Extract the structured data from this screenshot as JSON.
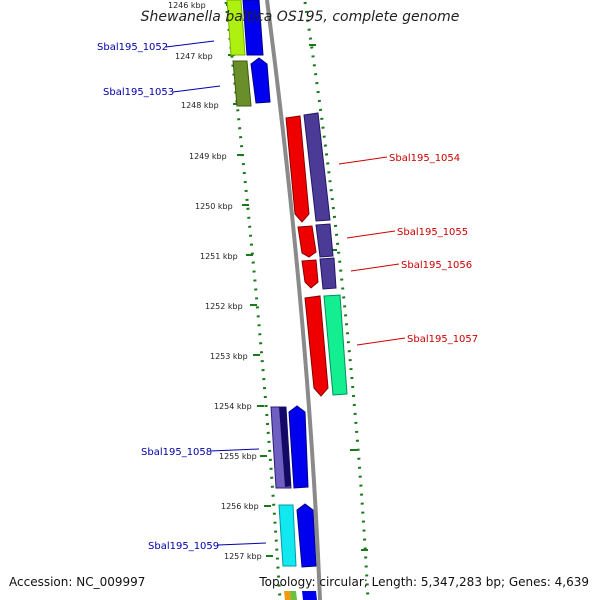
{
  "title": "Shewanella baltica OS195, complete genome",
  "accession": "Accession: NC_009997",
  "summary": "Topology: circular; Length: 5,347,283 bp; Genes: 4,639",
  "ruler": {
    "ticks": [
      "1246 kbp",
      "1247 kbp",
      "1248 kbp",
      "1249 kbp",
      "1250 kbp",
      "1251 kbp",
      "1252 kbp",
      "1253 kbp",
      "1254 kbp",
      "1255 kbp",
      "1256 kbp",
      "1257 kbp"
    ]
  },
  "genes": [
    {
      "label": "Sbal195_1052",
      "color": "#0000aa",
      "side": "left"
    },
    {
      "label": "Sbal195_1053",
      "color": "#0000aa",
      "side": "left"
    },
    {
      "label": "Sbal195_1054",
      "color": "#cc0000",
      "side": "right"
    },
    {
      "label": "Sbal195_1055",
      "color": "#cc0000",
      "side": "right"
    },
    {
      "label": "Sbal195_1056",
      "color": "#cc0000",
      "side": "right"
    },
    {
      "label": "Sbal195_1057",
      "color": "#cc0000",
      "side": "right"
    },
    {
      "label": "Sbal195_1058",
      "color": "#0000aa",
      "side": "left"
    },
    {
      "label": "Sbal195_1059",
      "color": "#0000aa",
      "side": "left"
    }
  ],
  "colors": {
    "backbone": "#8a8a8a",
    "dotted_ring": "#1a7a1a",
    "reverse_strand_gene": "#e00000",
    "forward_strand_gene": "#0000ee"
  }
}
